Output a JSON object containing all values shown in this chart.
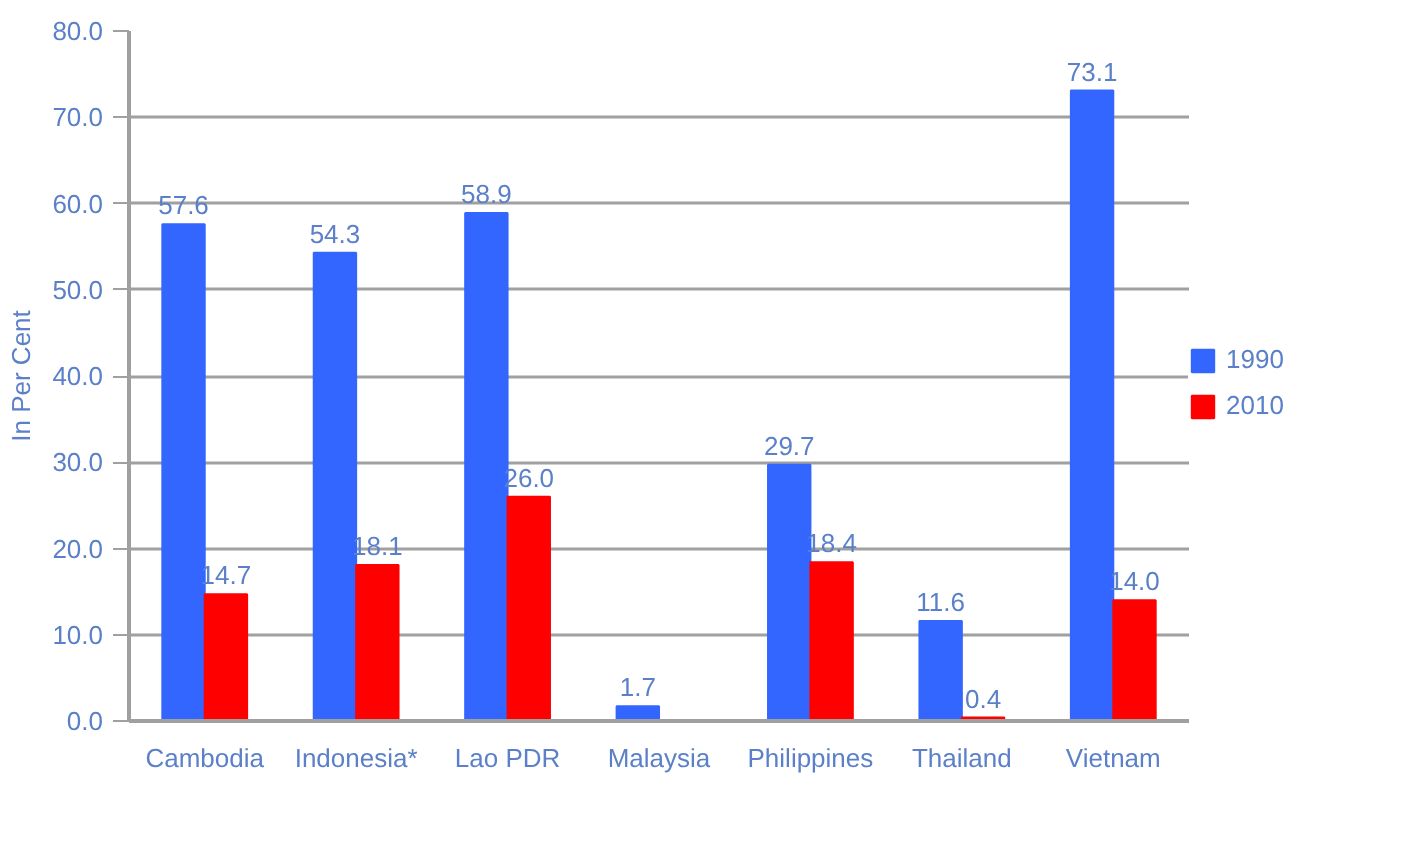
{
  "chart_data": {
    "type": "bar",
    "ylabel": "In Per Cent",
    "categories": [
      "Cambodia",
      "Indonesia*",
      "Lao PDR",
      "Malaysia",
      "Philippines",
      "Thailand",
      "Vietnam"
    ],
    "series": [
      {
        "name": "1990",
        "color": "#3366ff",
        "values": [
          57.6,
          54.3,
          58.9,
          1.7,
          29.7,
          11.6,
          73.1
        ],
        "value_labels": [
          "57.6",
          "54.3",
          "58.9",
          "1.7",
          "29.7",
          "11.6",
          "73.1"
        ]
      },
      {
        "name": "2010",
        "color": "#ff0000",
        "values": [
          14.7,
          18.1,
          26.0,
          null,
          18.4,
          0.4,
          14.0
        ],
        "value_labels": [
          "14.7",
          "18.1",
          "26.0",
          null,
          "18.4",
          "0.4",
          "14.0"
        ]
      }
    ],
    "ylim": [
      0,
      80
    ],
    "yticks": [
      {
        "value": 0,
        "label": "0.0"
      },
      {
        "value": 10,
        "label": "10.0"
      },
      {
        "value": 20,
        "label": "20.0"
      },
      {
        "value": 30,
        "label": "30.0"
      },
      {
        "value": 40,
        "label": "40.0"
      },
      {
        "value": 50,
        "label": "50.0"
      },
      {
        "value": 60,
        "label": "60.0"
      },
      {
        "value": 70,
        "label": "70.0"
      },
      {
        "value": 80,
        "label": "80.0"
      }
    ],
    "grid": "y",
    "legend": "right"
  }
}
